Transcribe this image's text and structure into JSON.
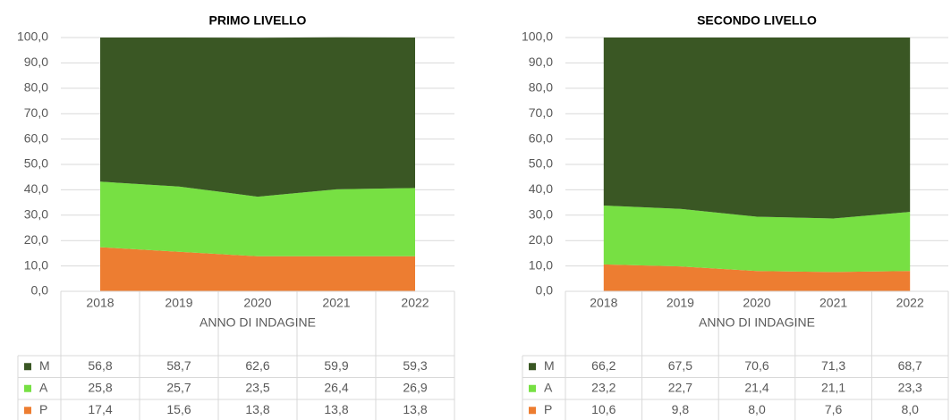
{
  "chart_data": [
    {
      "type": "stacked-area",
      "title": "PRIMO LIVELLO",
      "x_label": "ANNO DI INDAGINE",
      "categories": [
        "2018",
        "2019",
        "2020",
        "2021",
        "2022"
      ],
      "series": [
        {
          "name": "M",
          "color": "#3a5724",
          "values": [
            56.8,
            58.7,
            62.6,
            59.9,
            59.3
          ],
          "value_labels": [
            "56,8",
            "58,7",
            "62,6",
            "59,9",
            "59,3"
          ]
        },
        {
          "name": "A",
          "color": "#77e043",
          "values": [
            25.8,
            25.7,
            23.5,
            26.4,
            26.9
          ],
          "value_labels": [
            "25,8",
            "25,7",
            "23,5",
            "26,4",
            "26,9"
          ]
        },
        {
          "name": "P",
          "color": "#ed7d31",
          "values": [
            17.4,
            15.6,
            13.8,
            13.8,
            13.8
          ],
          "value_labels": [
            "17,4",
            "15,6",
            "13,8",
            "13,8",
            "13,8"
          ]
        }
      ],
      "ylim": [
        0,
        100
      ],
      "yticks": [
        {
          "value": 0,
          "label": "0,0"
        },
        {
          "value": 10,
          "label": "10,0"
        },
        {
          "value": 20,
          "label": "20,0"
        },
        {
          "value": 30,
          "label": "30,0"
        },
        {
          "value": 40,
          "label": "40,0"
        },
        {
          "value": 50,
          "label": "50,0"
        },
        {
          "value": 60,
          "label": "60,0"
        },
        {
          "value": 70,
          "label": "70,0"
        },
        {
          "value": 80,
          "label": "80,0"
        },
        {
          "value": 90,
          "label": "90,0"
        },
        {
          "value": 100,
          "label": "100,0"
        }
      ],
      "grid": true
    },
    {
      "type": "stacked-area",
      "title": "SECONDO LIVELLO",
      "x_label": "ANNO DI INDAGINE",
      "categories": [
        "2018",
        "2019",
        "2020",
        "2021",
        "2022"
      ],
      "series": [
        {
          "name": "M",
          "color": "#3a5724",
          "values": [
            66.2,
            67.5,
            70.6,
            71.3,
            68.7
          ],
          "value_labels": [
            "66,2",
            "67,5",
            "70,6",
            "71,3",
            "68,7"
          ]
        },
        {
          "name": "A",
          "color": "#77e043",
          "values": [
            23.2,
            22.7,
            21.4,
            21.1,
            23.3
          ],
          "value_labels": [
            "23,2",
            "22,7",
            "21,4",
            "21,1",
            "23,3"
          ]
        },
        {
          "name": "P",
          "color": "#ed7d31",
          "values": [
            10.6,
            9.8,
            8.0,
            7.6,
            8.0
          ],
          "value_labels": [
            "10,6",
            "9,8",
            "8,0",
            "7,6",
            "8,0"
          ]
        }
      ],
      "ylim": [
        0,
        100
      ],
      "yticks": [
        {
          "value": 0,
          "label": "0,0"
        },
        {
          "value": 10,
          "label": "10,0"
        },
        {
          "value": 20,
          "label": "20,0"
        },
        {
          "value": 30,
          "label": "30,0"
        },
        {
          "value": 40,
          "label": "40,0"
        },
        {
          "value": 50,
          "label": "50,0"
        },
        {
          "value": 60,
          "label": "60,0"
        },
        {
          "value": 70,
          "label": "70,0"
        },
        {
          "value": 80,
          "label": "80,0"
        },
        {
          "value": 90,
          "label": "90,0"
        },
        {
          "value": 100,
          "label": "100,0"
        }
      ],
      "grid": true
    }
  ]
}
